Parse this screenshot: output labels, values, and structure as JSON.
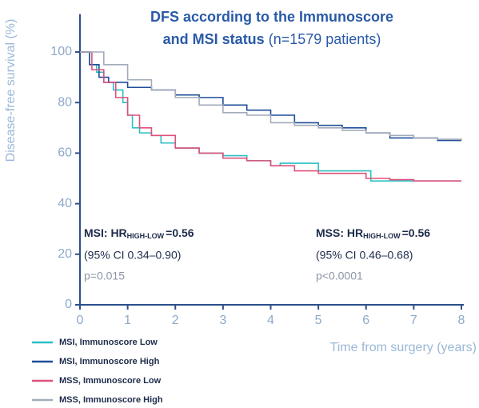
{
  "chart_data": {
    "type": "step",
    "title_lines": [
      "DFS according to the Immunoscore",
      "and MSI status"
    ],
    "title_note": "(n=1579 patients)",
    "ylabel": "Disease-free survival (%)",
    "xlabel": "Time from surgery (years)",
    "xlim": [
      0,
      8
    ],
    "xticks": [
      0,
      1,
      2,
      3,
      4,
      5,
      6,
      7,
      8
    ],
    "ylim": [
      0,
      115
    ],
    "yticks": [
      0,
      20,
      40,
      60,
      80,
      100
    ],
    "series": [
      {
        "name": "MSI, Immunoscore Low",
        "color": "#2bbfc4",
        "x": [
          0,
          0.2,
          0.35,
          0.5,
          0.7,
          0.9,
          1.0,
          1.1,
          1.25,
          1.5,
          1.7,
          2.0,
          2.5,
          3.0,
          3.5,
          4.0,
          4.2,
          5.0,
          5.5,
          6.1,
          8
        ],
        "values": [
          100,
          95,
          92,
          88,
          85,
          80,
          75,
          70,
          68,
          67,
          64,
          62,
          60,
          59,
          57,
          55,
          56,
          53,
          53,
          49,
          49
        ]
      },
      {
        "name": "MSI, Immunoscore High",
        "color": "#1f4e9a",
        "x": [
          0,
          0.2,
          0.4,
          0.6,
          1.0,
          1.5,
          2,
          2.5,
          3,
          3.5,
          4,
          4.5,
          5,
          5.5,
          6,
          6.5,
          7,
          7.5,
          8
        ],
        "values": [
          100,
          95,
          90,
          88,
          86,
          85,
          83,
          82,
          79,
          77,
          75,
          72,
          71,
          70,
          68,
          66,
          66,
          65,
          65
        ]
      },
      {
        "name": "MSS, Immunoscore Low",
        "color": "#e0507a",
        "x": [
          0,
          0.25,
          0.5,
          0.75,
          1.0,
          1.25,
          1.5,
          2.0,
          2.5,
          3,
          3.5,
          4,
          4.5,
          5,
          5.5,
          6,
          6.5,
          7,
          8
        ],
        "values": [
          100,
          93,
          88,
          82,
          75,
          70,
          67,
          62,
          60,
          58,
          57,
          55,
          53,
          52,
          52,
          50,
          49.5,
          49,
          49
        ]
      },
      {
        "name": "MSS, Immunoscore High",
        "color": "#a3abba",
        "x": [
          0,
          0.5,
          1,
          1.5,
          2,
          2.5,
          3,
          3.5,
          4,
          4.5,
          5,
          5.5,
          6,
          6.5,
          7,
          7.5,
          8
        ],
        "values": [
          100,
          95,
          89,
          85,
          82,
          79,
          76,
          75,
          72,
          71,
          70,
          69,
          68,
          67,
          66,
          65.5,
          65
        ]
      }
    ],
    "annotations": [
      {
        "hr": "MSI: HR",
        "sub": "HIGH-LOW",
        "eq": "=0.56",
        "ci": "(95% CI 0.34–0.90)",
        "p": "p=0.015"
      },
      {
        "hr": "MSS: HR",
        "sub": "HIGH-LOW",
        "eq": "=0.56",
        "ci": "(95% CI 0.46–0.68)",
        "p": "p<0.0001"
      }
    ]
  }
}
